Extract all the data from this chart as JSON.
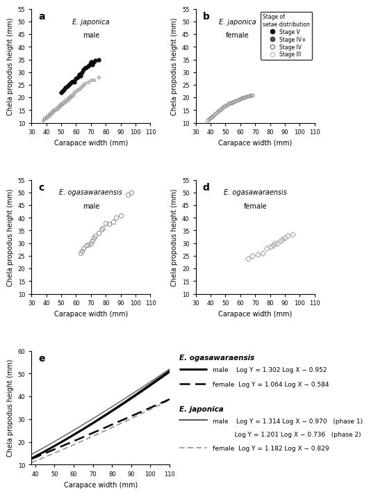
{
  "xlabel": "Carapace width (mm)",
  "ylabel": "Chela propodus height (mm)",
  "panel_a": {
    "label": "a",
    "title1": "E. japonica",
    "title2": "male",
    "xlim": [
      30,
      110
    ],
    "ylim": [
      10,
      55
    ],
    "xticks": [
      30,
      40,
      50,
      60,
      70,
      80,
      90,
      100,
      110
    ],
    "yticks": [
      10,
      15,
      20,
      25,
      30,
      35,
      40,
      45,
      50,
      55
    ],
    "gray_x": [
      38,
      39,
      39,
      40,
      40,
      41,
      41,
      42,
      42,
      43,
      43,
      44,
      44,
      45,
      45,
      46,
      46,
      47,
      47,
      48,
      48,
      49,
      49,
      50,
      50,
      51,
      51,
      52,
      52,
      53,
      53,
      54,
      54,
      55,
      55,
      56,
      56,
      57,
      57,
      58,
      58,
      59,
      60,
      61,
      62,
      63,
      64,
      65,
      66,
      68,
      70,
      72,
      75
    ],
    "gray_y": [
      11,
      11.5,
      12,
      12,
      12.5,
      12.5,
      13,
      13,
      13.5,
      13.5,
      14,
      14,
      14.5,
      14.5,
      15,
      15,
      15.5,
      15.5,
      16,
      16,
      16.5,
      16.5,
      17,
      17,
      17.5,
      17.5,
      18,
      18,
      18.5,
      18.5,
      19,
      19,
      19.5,
      19.5,
      20,
      20,
      20.5,
      20.5,
      21,
      21,
      21.5,
      22,
      22.5,
      23,
      23.5,
      24,
      24.5,
      25,
      25.5,
      26,
      27,
      27,
      28
    ],
    "black_x": [
      50,
      51,
      52,
      53,
      54,
      55,
      56,
      57,
      58,
      59,
      60,
      61,
      62,
      63,
      64,
      65,
      66,
      67,
      68,
      69,
      70,
      71,
      72,
      73,
      75
    ],
    "black_y": [
      22,
      22.5,
      23,
      24,
      24.5,
      25,
      25.5,
      26,
      26.5,
      26,
      27.5,
      28,
      29,
      28.5,
      30,
      31,
      31.5,
      32,
      32.5,
      33,
      34,
      33,
      34,
      34.5,
      35
    ]
  },
  "panel_b": {
    "label": "b",
    "title1": "E. japonica",
    "title2": "female",
    "xlim": [
      30,
      110
    ],
    "ylim": [
      10,
      55
    ],
    "xticks": [
      30,
      40,
      50,
      60,
      70,
      80,
      90,
      100,
      110
    ],
    "yticks": [
      10,
      15,
      20,
      25,
      30,
      35,
      40,
      45,
      50,
      55
    ],
    "open_x": [
      38,
      39,
      40,
      41,
      42,
      43,
      44,
      45,
      46,
      47,
      48,
      49,
      50,
      51,
      52,
      53,
      54,
      55,
      56,
      57,
      58,
      59,
      60,
      61,
      62,
      63,
      64,
      65,
      66,
      67,
      68
    ],
    "open_y": [
      11,
      11.5,
      12,
      12.5,
      13,
      13.5,
      14,
      14.5,
      15,
      15.5,
      16,
      16.5,
      16.8,
      17,
      17.5,
      17.8,
      18,
      18.2,
      18.5,
      18.8,
      19,
      19.3,
      19.5,
      19.8,
      20,
      20.2,
      20.4,
      20.5,
      20.7,
      20.9,
      21
    ]
  },
  "panel_c": {
    "label": "c",
    "title1": "E. ogasawaraensis",
    "title2": "male",
    "xlim": [
      30,
      110
    ],
    "ylim": [
      10,
      55
    ],
    "xticks": [
      30,
      40,
      50,
      60,
      70,
      80,
      90,
      100,
      110
    ],
    "yticks": [
      10,
      15,
      20,
      25,
      30,
      35,
      40,
      45,
      50,
      55
    ],
    "x": [
      63,
      64,
      65,
      67,
      68,
      70,
      71,
      72,
      73,
      75,
      77,
      78,
      80,
      82,
      85,
      87,
      90,
      95,
      97
    ],
    "y": [
      26,
      27,
      28,
      29,
      29.5,
      30,
      31,
      32,
      33,
      34,
      35.5,
      36,
      38,
      37.5,
      38.5,
      40,
      41,
      49,
      50
    ]
  },
  "panel_d": {
    "label": "d",
    "title1": "E. ogasawaraensis",
    "title2": "female",
    "xlim": [
      30,
      110
    ],
    "ylim": [
      10,
      55
    ],
    "xticks": [
      30,
      40,
      50,
      60,
      70,
      80,
      90,
      100,
      110
    ],
    "yticks": [
      10,
      15,
      20,
      25,
      30,
      35,
      40,
      45,
      50,
      55
    ],
    "x": [
      65,
      68,
      72,
      75,
      78,
      80,
      82,
      83,
      85,
      87,
      88,
      90,
      92,
      95
    ],
    "y": [
      24,
      25,
      25.5,
      26,
      28,
      28.5,
      29,
      30,
      30,
      31,
      31.5,
      32,
      33,
      33.5
    ]
  },
  "panel_e": {
    "label": "e",
    "xlim": [
      38,
      110
    ],
    "ylim": [
      10,
      60
    ],
    "xticks": [
      40,
      50,
      60,
      70,
      80,
      90,
      100,
      110
    ],
    "yticks": [
      10,
      20,
      30,
      40,
      50,
      60
    ],
    "oga_male_a": 1.302,
    "oga_male_b": -0.952,
    "oga_female_a": 1.064,
    "oga_female_b": -0.584,
    "jap_male1_a": 1.314,
    "jap_male1_b": -0.97,
    "jap_male2_a": 1.201,
    "jap_male2_b": -0.736,
    "jap_female_a": 1.182,
    "jap_female_b": -0.829
  }
}
